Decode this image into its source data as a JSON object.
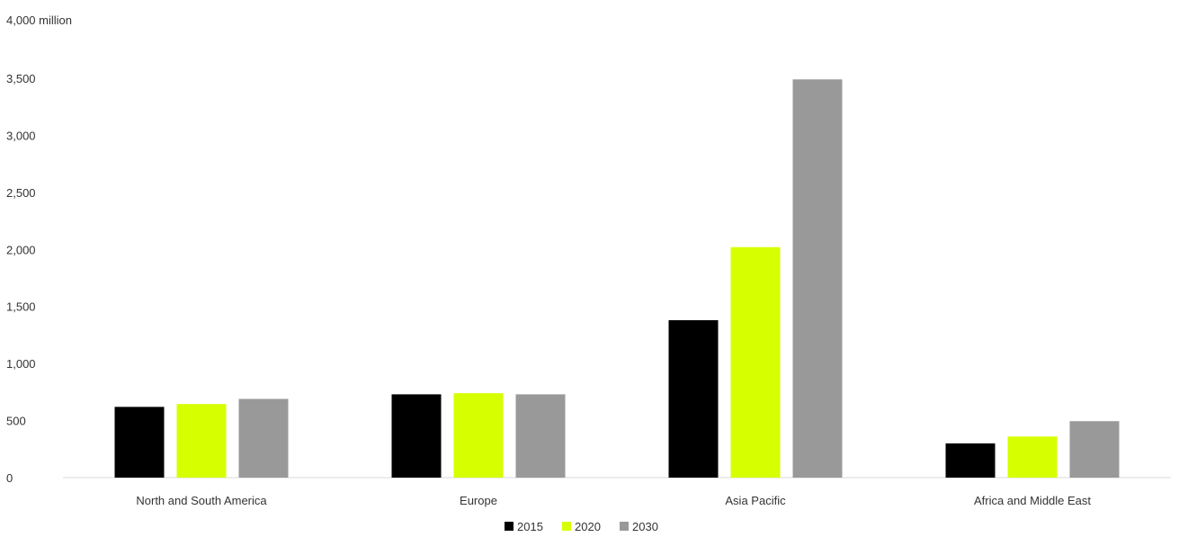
{
  "chart_data": {
    "type": "bar",
    "y_unit_label": "4,000 million",
    "categories": [
      "North and South America",
      "Europe",
      "Asia Pacific",
      "Africa and Middle East"
    ],
    "series": [
      {
        "name": "2015",
        "color": "#000000",
        "values": [
          620,
          730,
          1380,
          300
        ]
      },
      {
        "name": "2020",
        "color": "#d6ff00",
        "values": [
          645,
          740,
          2020,
          360
        ]
      },
      {
        "name": "2030",
        "color": "#999999",
        "values": [
          690,
          730,
          3490,
          495
        ]
      }
    ],
    "y_ticks": [
      {
        "value": 0,
        "label": "0"
      },
      {
        "value": 500,
        "label": "500"
      },
      {
        "value": 1000,
        "label": "1,000"
      },
      {
        "value": 1500,
        "label": "1,500"
      },
      {
        "value": 2000,
        "label": "2,000"
      },
      {
        "value": 2500,
        "label": "2,500"
      },
      {
        "value": 3000,
        "label": "3,000"
      },
      {
        "value": 3500,
        "label": "3,500"
      }
    ],
    "ylim": [
      0,
      4000
    ],
    "grid": false,
    "legend_position": "bottom"
  }
}
